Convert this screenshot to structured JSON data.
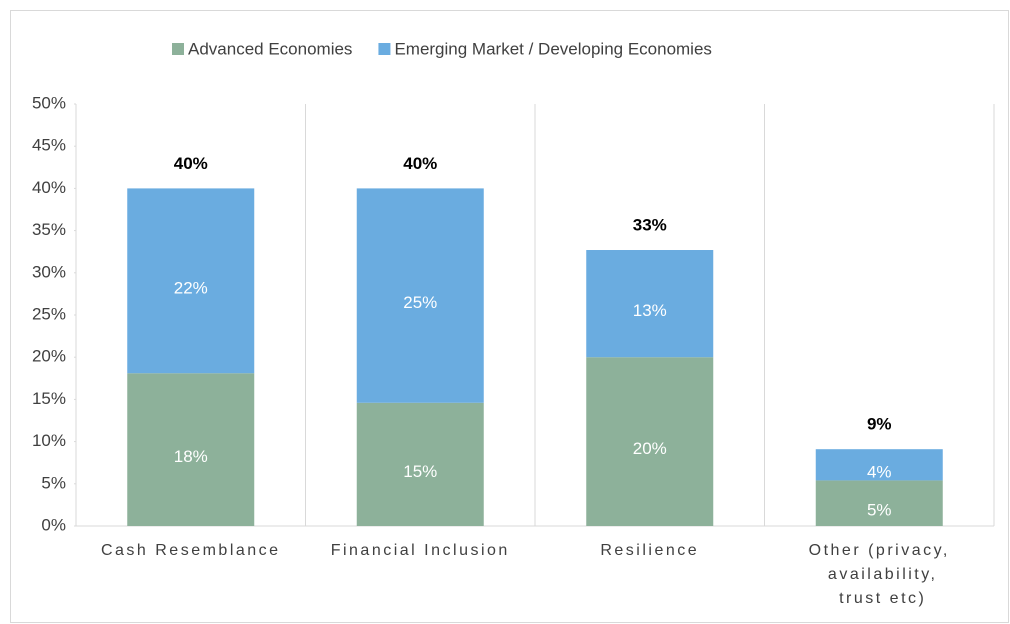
{
  "chart_data": {
    "type": "stacked_bar",
    "categories": [
      "Cash Resemblance",
      "Financial Inclusion",
      "Resilience",
      "Other (privacy, availability, trust etc)"
    ],
    "series": [
      {
        "name": "Advanced Economies",
        "color": "#8db19a",
        "values": [
          18.1,
          14.6,
          20,
          5.4
        ],
        "value_labels": [
          "18%",
          "15%",
          "20%",
          "5%"
        ]
      },
      {
        "name": "Emerging Market / Developing Economies",
        "color": "#6aace0",
        "values": [
          21.9,
          25.4,
          12.7,
          3.7
        ],
        "value_labels": [
          "22%",
          "25%",
          "13%",
          "4%"
        ]
      }
    ],
    "totals": [
      40,
      40,
      32.7,
      9.1
    ],
    "total_labels": [
      "40%",
      "40%",
      "33%",
      "9%"
    ],
    "ylim": [
      0,
      50
    ],
    "yticks": [
      {
        "value": 0,
        "label": "0%"
      },
      {
        "value": 5,
        "label": "5%"
      },
      {
        "value": 10,
        "label": "10%"
      },
      {
        "value": 15,
        "label": "15%"
      },
      {
        "value": 20,
        "label": "20%"
      },
      {
        "value": 25,
        "label": "25%"
      },
      {
        "value": 30,
        "label": "30%"
      },
      {
        "value": 35,
        "label": "35%"
      },
      {
        "value": 40,
        "label": "40%"
      },
      {
        "value": 45,
        "label": "45%"
      },
      {
        "value": 50,
        "label": "50%"
      }
    ],
    "legend": "top"
  }
}
